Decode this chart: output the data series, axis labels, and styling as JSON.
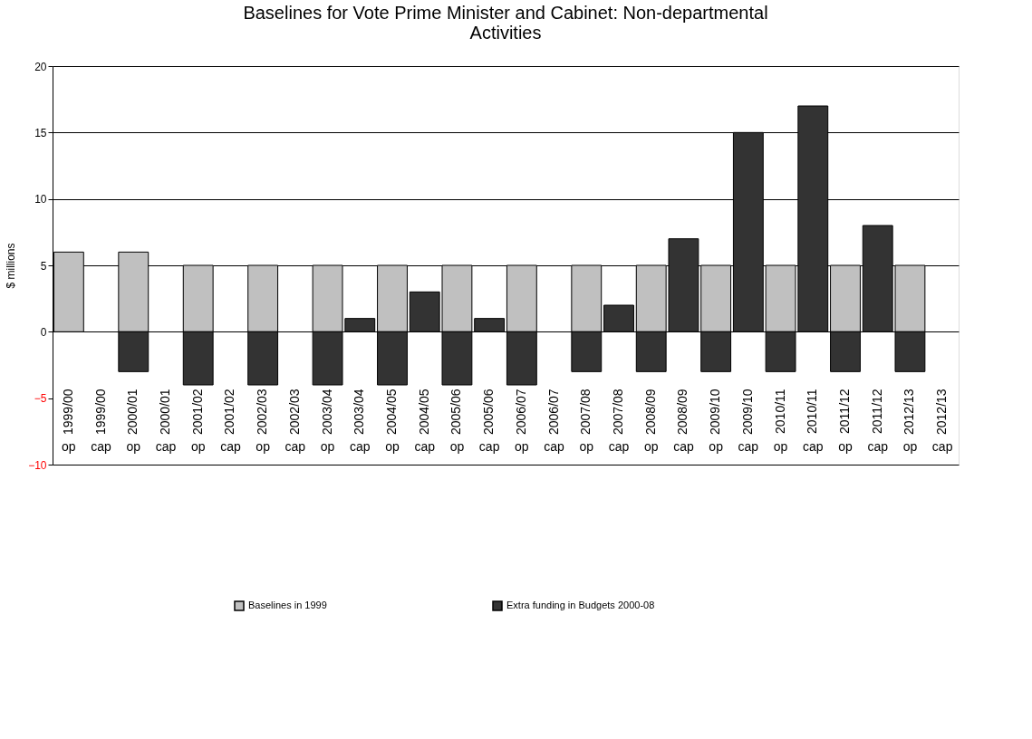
{
  "chart_data": {
    "type": "bar",
    "title": [
      "Baselines for Vote Prime Minister and Cabinet: Non-departmental",
      "Activities"
    ],
    "ylabel": "$ millions",
    "categories": [
      "1999/00 op",
      "1999/00 cap",
      "2000/01 op",
      "2000/01 cap",
      "2001/02 op",
      "2001/02 cap",
      "2002/03 op",
      "2002/03 cap",
      "2003/04 op",
      "2003/04 cap",
      "2004/05 op",
      "2004/05 cap",
      "2005/06 op",
      "2005/06 cap",
      "2006/07 op",
      "2006/07 cap",
      "2007/08 op",
      "2007/08 cap",
      "2008/09 op",
      "2008/09 cap",
      "2009/10 op",
      "2009/10 cap",
      "2010/11 op",
      "2010/11 cap",
      "2011/12 op",
      "2011/12 cap",
      "2012/13 op",
      "2012/13 cap"
    ],
    "series": [
      {
        "name": "Baselines in 1999",
        "color": "#c0c0c0",
        "values": [
          6,
          null,
          6,
          null,
          5,
          null,
          5,
          null,
          5,
          null,
          5,
          null,
          5,
          null,
          5,
          null,
          5,
          null,
          5,
          null,
          5,
          null,
          5,
          null,
          5,
          null,
          5,
          null
        ]
      },
      {
        "name": "Extra funding in Budgets 2000-08",
        "color": "#333333",
        "values": [
          null,
          null,
          -3,
          null,
          -4,
          null,
          -4,
          null,
          -4,
          1,
          -4,
          3,
          -4,
          1,
          -4,
          null,
          -3,
          2,
          -3,
          7,
          -3,
          15,
          -3,
          17,
          -3,
          8,
          -3,
          null
        ]
      }
    ],
    "ylim": [
      -10,
      20
    ],
    "yticks": [
      -10,
      -5,
      0,
      5,
      10,
      15,
      20
    ],
    "grid": "y",
    "legend": "bottom"
  }
}
